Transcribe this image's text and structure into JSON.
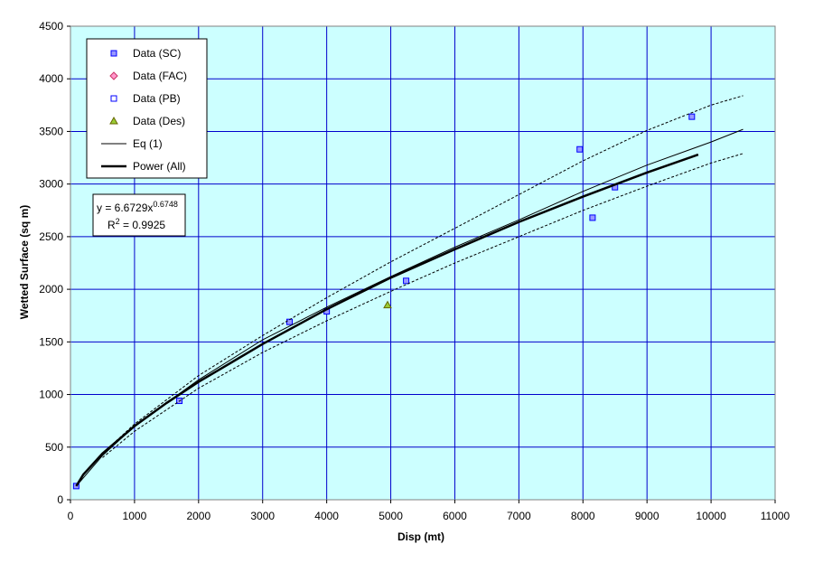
{
  "chart_data": {
    "type": "scatter",
    "title": "",
    "xlabel": "Disp (mt)",
    "ylabel": "Wetted Surface (sq m)",
    "xlim": [
      0,
      11000
    ],
    "ylim": [
      0,
      4500
    ],
    "x_ticks": [
      0,
      1000,
      2000,
      3000,
      4000,
      5000,
      6000,
      7000,
      8000,
      9000,
      10000,
      11000
    ],
    "y_ticks": [
      0,
      500,
      1000,
      1500,
      2000,
      2500,
      3000,
      3500,
      4000,
      4500
    ],
    "grid": true,
    "legend_placement": "top-left",
    "plot_background": "#ccffff",
    "grid_color": "#0000cc",
    "series": [
      {
        "name": "Data (SC)",
        "kind": "marker",
        "marker": "square",
        "color": "#0000ff",
        "fill": "#9999ff",
        "points": [
          [
            90,
            130
          ],
          [
            1700,
            940
          ],
          [
            3420,
            1690
          ],
          [
            4000,
            1790
          ],
          [
            5240,
            2080
          ],
          [
            7950,
            3330
          ],
          [
            8150,
            2680
          ],
          [
            8500,
            2970
          ],
          [
            9700,
            3640
          ]
        ]
      },
      {
        "name": "Data (FAC)",
        "kind": "marker",
        "marker": "diamond",
        "color": "#cc3366",
        "fill": "#ff99cc",
        "points": []
      },
      {
        "name": "Data (PB)",
        "kind": "marker",
        "marker": "square",
        "color": "#0000ff",
        "fill": "#ffffff",
        "points": []
      },
      {
        "name": "Data (Des)",
        "kind": "marker",
        "marker": "triangle",
        "color": "#666600",
        "fill": "#99cc33",
        "points": [
          [
            4950,
            1850
          ]
        ]
      },
      {
        "name": "Eq (1)",
        "kind": "line",
        "color": "#000000",
        "width": 1,
        "points": [
          [
            90,
            130
          ],
          [
            500,
            420
          ],
          [
            1000,
            700
          ],
          [
            2000,
            1140
          ],
          [
            3000,
            1520
          ],
          [
            4000,
            1830
          ],
          [
            5000,
            2120
          ],
          [
            6000,
            2400
          ],
          [
            7000,
            2660
          ],
          [
            8000,
            2930
          ],
          [
            9000,
            3180
          ],
          [
            10000,
            3400
          ],
          [
            10500,
            3520
          ]
        ]
      },
      {
        "name": "Power (All)",
        "kind": "line",
        "color": "#000000",
        "width": 2.5,
        "points": [
          [
            90,
            130
          ],
          [
            200,
            240
          ],
          [
            500,
            440
          ],
          [
            1000,
            700
          ],
          [
            1500,
            920
          ],
          [
            2000,
            1120
          ],
          [
            3000,
            1480
          ],
          [
            4000,
            1810
          ],
          [
            5000,
            2110
          ],
          [
            6000,
            2380
          ],
          [
            7000,
            2640
          ],
          [
            8000,
            2880
          ],
          [
            9000,
            3110
          ],
          [
            9800,
            3280
          ]
        ]
      },
      {
        "name": "",
        "kind": "line",
        "style": "dashed",
        "color": "#000000",
        "width": 1,
        "points": [
          [
            500,
            440
          ],
          [
            1000,
            720
          ],
          [
            2000,
            1180
          ],
          [
            3000,
            1560
          ],
          [
            4000,
            1920
          ],
          [
            5000,
            2260
          ],
          [
            6000,
            2580
          ],
          [
            7000,
            2900
          ],
          [
            8000,
            3220
          ],
          [
            9000,
            3510
          ],
          [
            10000,
            3750
          ],
          [
            10500,
            3840
          ]
        ]
      },
      {
        "name": "",
        "kind": "line",
        "style": "dashed",
        "color": "#000000",
        "width": 1,
        "points": [
          [
            500,
            400
          ],
          [
            1000,
            650
          ],
          [
            2000,
            1060
          ],
          [
            3000,
            1400
          ],
          [
            4000,
            1700
          ],
          [
            5000,
            1980
          ],
          [
            6000,
            2250
          ],
          [
            7000,
            2500
          ],
          [
            8000,
            2750
          ],
          [
            9000,
            2980
          ],
          [
            10000,
            3200
          ],
          [
            10500,
            3290
          ]
        ]
      }
    ],
    "legend_entries": [
      "Data (SC)",
      "Data (FAC)",
      "Data (PB)",
      "Data (Des)",
      "Eq (1)",
      "Power (All)"
    ],
    "annotation": {
      "equation_prefix": "y = 6.6729x",
      "equation_exponent": "0.6748",
      "r2_prefix": "R",
      "r2_exponent": "2",
      "r2_suffix": " = 0.9925"
    }
  }
}
